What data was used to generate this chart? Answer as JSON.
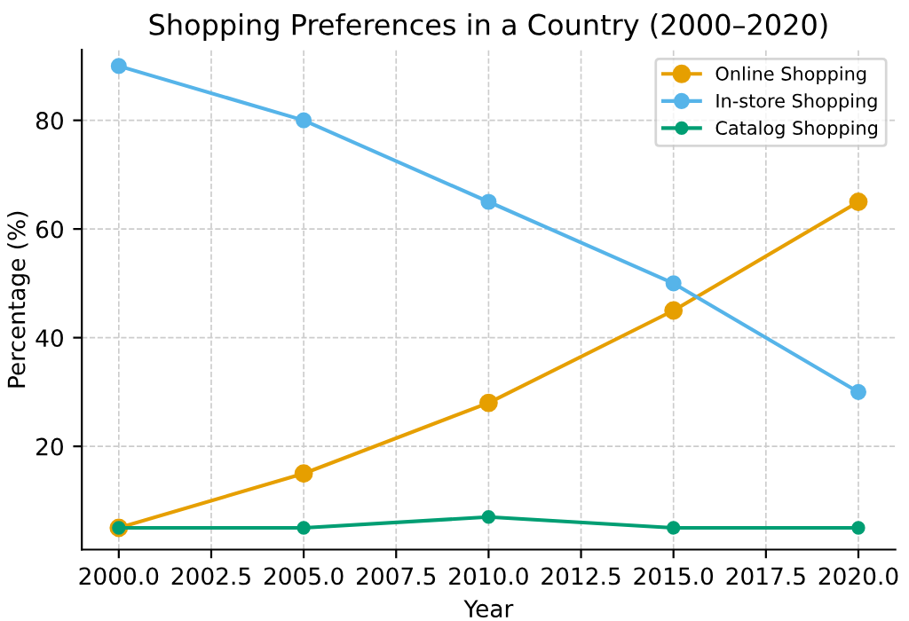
{
  "chart_data": {
    "type": "line",
    "title": "Shopping Preferences in a Country (2000–2020)",
    "xlabel": "Year",
    "ylabel": "Percentage (%)",
    "x": [
      2000,
      2005,
      2010,
      2015,
      2020
    ],
    "series": [
      {
        "name": "Online Shopping",
        "color": "#e69f00",
        "values": [
          5,
          15,
          28,
          45,
          65
        ]
      },
      {
        "name": "In-store Shopping",
        "color": "#56b4e9",
        "values": [
          90,
          80,
          65,
          50,
          30
        ]
      },
      {
        "name": "Catalog Shopping",
        "color": "#009e73",
        "values": [
          5,
          5,
          7,
          5,
          5
        ]
      }
    ],
    "xlim": [
      1999,
      2021
    ],
    "ylim": [
      1,
      93
    ],
    "xticks": [
      {
        "value": 2000,
        "label": "2000.0"
      },
      {
        "value": 2002.5,
        "label": "2002.5"
      },
      {
        "value": 2005,
        "label": "2005.0"
      },
      {
        "value": 2007.5,
        "label": "2007.5"
      },
      {
        "value": 2010,
        "label": "2010.0"
      },
      {
        "value": 2012.5,
        "label": "2012.5"
      },
      {
        "value": 2015,
        "label": "2015.0"
      },
      {
        "value": 2017.5,
        "label": "2017.5"
      },
      {
        "value": 2020,
        "label": "2020.0"
      }
    ],
    "yticks": [
      20,
      40,
      60,
      80
    ],
    "grid": true,
    "legend": "top right",
    "marker": "circle",
    "line_style": "solid"
  }
}
